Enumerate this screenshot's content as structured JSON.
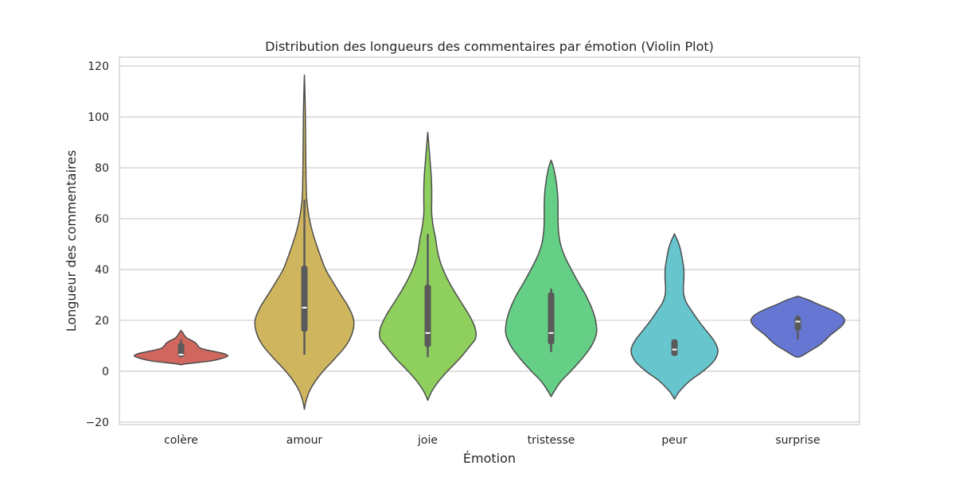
{
  "chart_data": {
    "type": "violin",
    "title": "Distribution des longueurs des commentaires par émotion (Violin Plot)",
    "xlabel": "Émotion",
    "ylabel": "Longueur des commentaires",
    "ylim": [
      -21,
      123.5
    ],
    "yticks": [
      -20,
      0,
      20,
      40,
      60,
      80,
      100,
      120
    ],
    "ytick_labels": [
      "−20",
      "0",
      "20",
      "40",
      "60",
      "80",
      "100",
      "120"
    ],
    "grid": "horizontal",
    "categories": [
      "colère",
      "amour",
      "joie",
      "tristesse",
      "peur",
      "surprise"
    ],
    "colors": [
      "#d0675f",
      "#cfb65e",
      "#8fcf5e",
      "#65cf85",
      "#66c5cd",
      "#6677d3"
    ],
    "outline_color": "#4d4d4d",
    "box_color": "#5a5a5a",
    "violins": [
      {
        "name": "colère",
        "whisker": [
          5.5,
          12.5
        ],
        "q1": 5.5,
        "median": 6.5,
        "q3": 11,
        "profile": [
          [
            2.5,
            0
          ],
          [
            3,
            0.15
          ],
          [
            4,
            0.6
          ],
          [
            5,
            0.82
          ],
          [
            6,
            0.95
          ],
          [
            7,
            0.85
          ],
          [
            8,
            0.6
          ],
          [
            9,
            0.4
          ],
          [
            10,
            0.34
          ],
          [
            11,
            0.3
          ],
          [
            12,
            0.22
          ],
          [
            13,
            0.12
          ],
          [
            14,
            0.07
          ],
          [
            15,
            0.04
          ],
          [
            16,
            0
          ]
        ]
      },
      {
        "name": "amour",
        "whisker": [
          6.5,
          67.5
        ],
        "q1": 15.5,
        "median": 25,
        "q3": 41.5,
        "profile": [
          [
            -15,
            0
          ],
          [
            -12,
            0.03
          ],
          [
            -8,
            0.1
          ],
          [
            -4,
            0.22
          ],
          [
            0,
            0.38
          ],
          [
            5,
            0.62
          ],
          [
            10,
            0.84
          ],
          [
            15,
            0.97
          ],
          [
            20,
            1
          ],
          [
            25,
            0.9
          ],
          [
            30,
            0.74
          ],
          [
            35,
            0.58
          ],
          [
            40,
            0.43
          ],
          [
            45,
            0.33
          ],
          [
            50,
            0.24
          ],
          [
            55,
            0.16
          ],
          [
            60,
            0.1
          ],
          [
            65,
            0.06
          ],
          [
            70,
            0.04
          ],
          [
            80,
            0.03
          ],
          [
            90,
            0.025
          ],
          [
            100,
            0.02
          ],
          [
            110,
            0.01
          ],
          [
            116.5,
            0
          ]
        ]
      },
      {
        "name": "joie",
        "whisker": [
          5.5,
          54
        ],
        "q1": 9.5,
        "median": 15,
        "q3": 34,
        "profile": [
          [
            -11.5,
            0
          ],
          [
            -8,
            0.08
          ],
          [
            -4,
            0.22
          ],
          [
            0,
            0.4
          ],
          [
            5,
            0.65
          ],
          [
            10,
            0.86
          ],
          [
            13,
            0.97
          ],
          [
            17,
            0.96
          ],
          [
            22,
            0.84
          ],
          [
            27,
            0.68
          ],
          [
            32,
            0.52
          ],
          [
            37,
            0.38
          ],
          [
            42,
            0.27
          ],
          [
            47,
            0.2
          ],
          [
            52,
            0.16
          ],
          [
            57,
            0.11
          ],
          [
            62,
            0.08
          ],
          [
            67,
            0.08
          ],
          [
            72,
            0.08
          ],
          [
            77,
            0.07
          ],
          [
            82,
            0.05
          ],
          [
            87,
            0.03
          ],
          [
            94,
            0
          ]
        ]
      },
      {
        "name": "tristesse",
        "whisker": [
          7.5,
          32.5
        ],
        "q1": 10.5,
        "median": 15,
        "q3": 31,
        "profile": [
          [
            -10,
            0
          ],
          [
            -8,
            0.06
          ],
          [
            -4,
            0.2
          ],
          [
            0,
            0.4
          ],
          [
            5,
            0.63
          ],
          [
            10,
            0.82
          ],
          [
            15,
            0.92
          ],
          [
            20,
            0.9
          ],
          [
            25,
            0.82
          ],
          [
            30,
            0.7
          ],
          [
            35,
            0.55
          ],
          [
            40,
            0.41
          ],
          [
            45,
            0.28
          ],
          [
            50,
            0.19
          ],
          [
            55,
            0.15
          ],
          [
            60,
            0.14
          ],
          [
            65,
            0.14
          ],
          [
            70,
            0.13
          ],
          [
            75,
            0.1
          ],
          [
            80,
            0.05
          ],
          [
            83,
            0
          ]
        ]
      },
      {
        "name": "peur",
        "whisker": [
          6,
          12.5
        ],
        "q1": 6,
        "median": 8.5,
        "q3": 12.5,
        "profile": [
          [
            -11,
            0
          ],
          [
            -8,
            0.1
          ],
          [
            -4,
            0.3
          ],
          [
            0,
            0.58
          ],
          [
            4,
            0.8
          ],
          [
            8,
            0.88
          ],
          [
            12,
            0.8
          ],
          [
            16,
            0.64
          ],
          [
            20,
            0.48
          ],
          [
            24,
            0.34
          ],
          [
            27,
            0.24
          ],
          [
            30,
            0.19
          ],
          [
            33,
            0.18
          ],
          [
            36,
            0.19
          ],
          [
            40,
            0.19
          ],
          [
            44,
            0.16
          ],
          [
            48,
            0.12
          ],
          [
            51,
            0.07
          ],
          [
            54,
            0
          ]
        ]
      },
      {
        "name": "surprise",
        "whisker": [
          12.5,
          22
        ],
        "q1": 16,
        "median": 19.5,
        "q3": 21.5,
        "profile": [
          [
            5.5,
            0
          ],
          [
            6,
            0.08
          ],
          [
            8,
            0.25
          ],
          [
            10,
            0.42
          ],
          [
            12,
            0.55
          ],
          [
            14,
            0.65
          ],
          [
            16,
            0.78
          ],
          [
            18,
            0.9
          ],
          [
            20,
            0.95
          ],
          [
            22,
            0.88
          ],
          [
            24,
            0.7
          ],
          [
            26,
            0.45
          ],
          [
            28,
            0.22
          ],
          [
            29.5,
            0
          ]
        ]
      }
    ]
  }
}
